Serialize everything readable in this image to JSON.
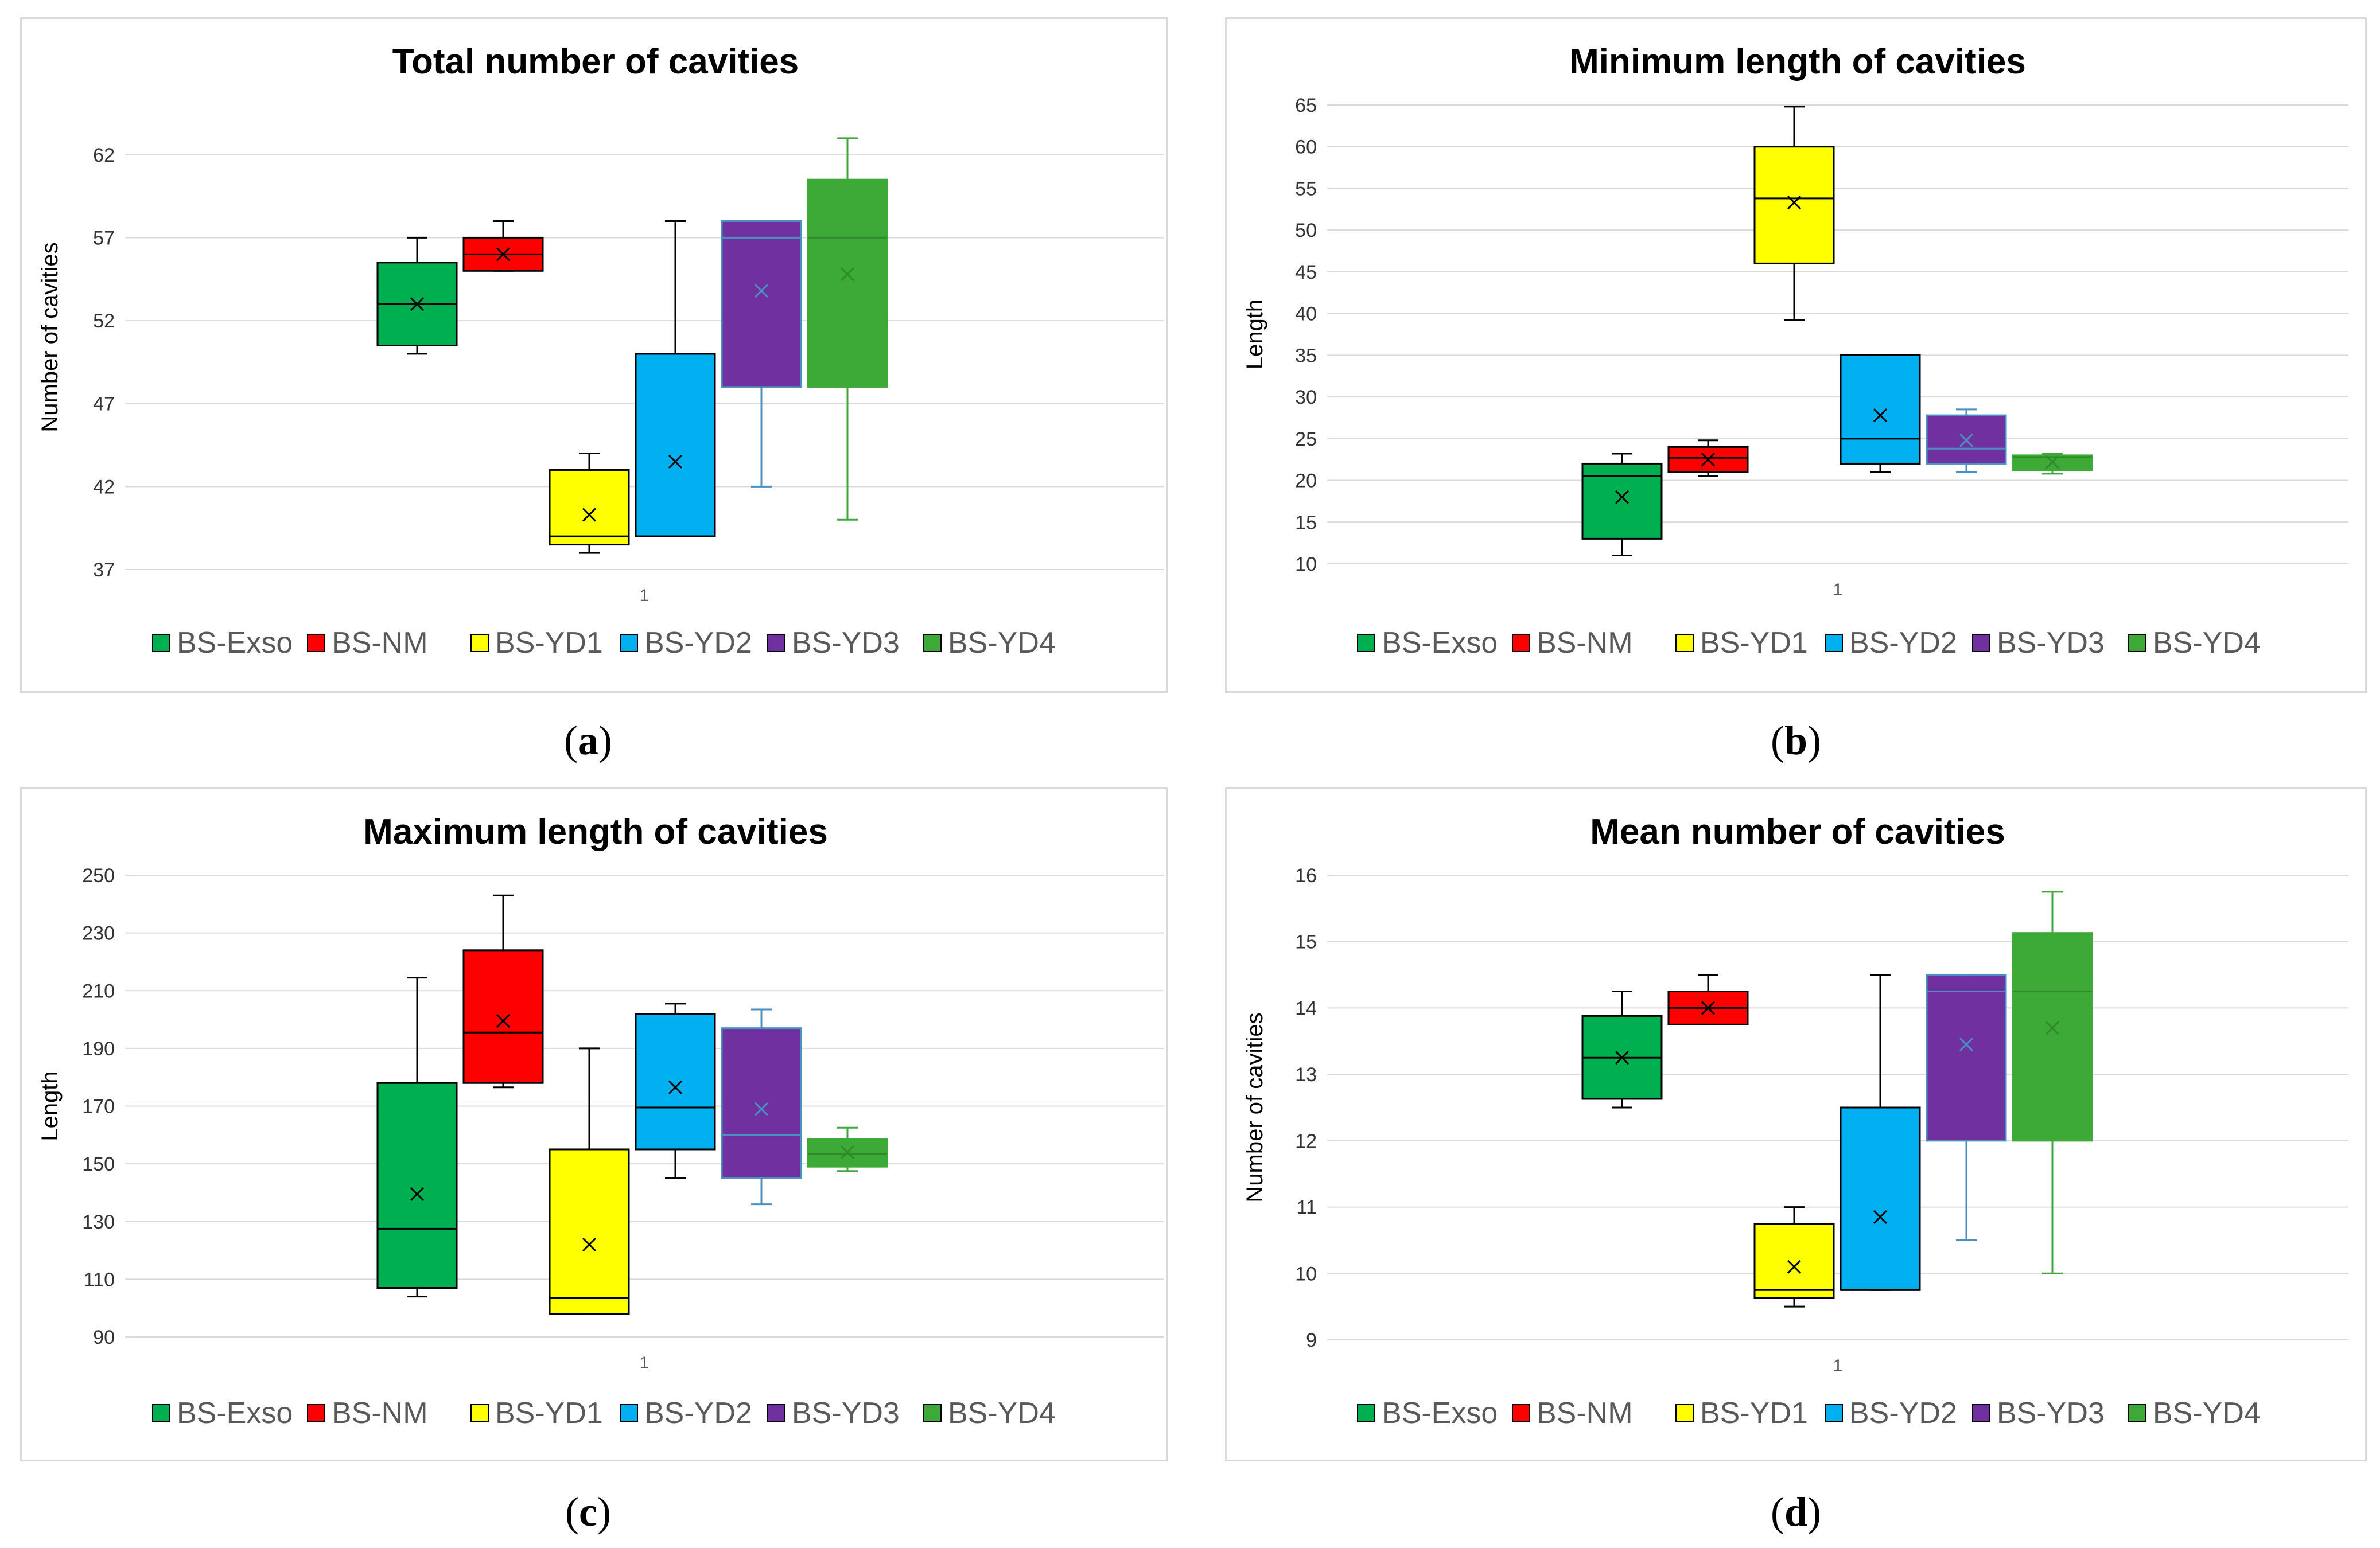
{
  "captions": [
    "a",
    "b",
    "c",
    "d"
  ],
  "chart_data": [
    {
      "type": "box",
      "title": "Total number of cavities",
      "xlabel": "",
      "ylabel": "Number of cavities",
      "category": "1",
      "ylim": [
        37,
        65
      ],
      "yticks": [
        37,
        42,
        47,
        52,
        57,
        62
      ],
      "series": [
        {
          "name": "BS-Exso",
          "color": "#00b050",
          "min": 50,
          "q1": 50.5,
          "median": 53,
          "q3": 55.5,
          "max": 57,
          "mean": 53
        },
        {
          "name": "BS-NM",
          "color": "#ff0000",
          "min": 55,
          "q1": 55,
          "median": 56,
          "q3": 57,
          "max": 58,
          "mean": 56
        },
        {
          "name": "BS-YD1",
          "color": "#ffff00",
          "min": 38,
          "q1": 38.5,
          "median": 39,
          "q3": 43,
          "max": 44,
          "mean": 40.3
        },
        {
          "name": "BS-YD2",
          "color": "#00b0f0",
          "min": 39,
          "q1": 39,
          "median": 39,
          "q3": 50,
          "max": 58,
          "mean": 43.5
        },
        {
          "name": "BS-YD3",
          "color": "#7030a0",
          "min": 42,
          "q1": 48,
          "median": 57,
          "q3": 58,
          "max": 58,
          "mean": 53.8
        },
        {
          "name": "BS-YD4",
          "color": "#3daa37",
          "min": 40,
          "q1": 48,
          "median": 57,
          "q3": 60.5,
          "max": 63,
          "mean": 54.8
        }
      ]
    },
    {
      "type": "box",
      "title": "Minimum length of cavities",
      "xlabel": "",
      "ylabel": "Length",
      "category": "1",
      "ylim": [
        10,
        65
      ],
      "yticks": [
        10,
        15,
        20,
        25,
        30,
        35,
        40,
        45,
        50,
        55,
        60,
        65
      ],
      "series": [
        {
          "name": "BS-Exso",
          "color": "#00b050",
          "min": 11,
          "q1": 13,
          "median": 20.5,
          "q3": 22,
          "max": 23.2,
          "mean": 18
        },
        {
          "name": "BS-NM",
          "color": "#ff0000",
          "min": 20.5,
          "q1": 21,
          "median": 22.7,
          "q3": 24,
          "max": 24.8,
          "mean": 22.5
        },
        {
          "name": "BS-YD1",
          "color": "#ffff00",
          "min": 39.2,
          "q1": 46,
          "median": 53.8,
          "q3": 60,
          "max": 64.8,
          "mean": 53.3
        },
        {
          "name": "BS-YD2",
          "color": "#00b0f0",
          "min": 21,
          "q1": 22,
          "median": 25,
          "q3": 35,
          "max": 35,
          "mean": 27.8
        },
        {
          "name": "BS-YD3",
          "color": "#7030a0",
          "min": 21,
          "q1": 22,
          "median": 23.8,
          "q3": 27.8,
          "max": 28.5,
          "mean": 24.8
        },
        {
          "name": "BS-YD4",
          "color": "#3daa37",
          "min": 20.8,
          "q1": 21.2,
          "median": 22.8,
          "q3": 23,
          "max": 23.2,
          "mean": 22.2
        }
      ]
    },
    {
      "type": "box",
      "title": "Maximum length of cavities",
      "xlabel": "",
      "ylabel": "Length",
      "category": "1",
      "ylim": [
        90,
        250
      ],
      "yticks": [
        90,
        110,
        130,
        150,
        170,
        190,
        210,
        230,
        250
      ],
      "series": [
        {
          "name": "BS-Exso",
          "color": "#00b050",
          "min": 104,
          "q1": 107,
          "median": 127.5,
          "q3": 178,
          "max": 214.5,
          "mean": 139.5
        },
        {
          "name": "BS-NM",
          "color": "#ff0000",
          "min": 176.5,
          "q1": 178,
          "median": 195.5,
          "q3": 224,
          "max": 243,
          "mean": 199.5
        },
        {
          "name": "BS-YD1",
          "color": "#ffff00",
          "min": 98,
          "q1": 98,
          "median": 103.5,
          "q3": 155,
          "max": 190,
          "mean": 122
        },
        {
          "name": "BS-YD2",
          "color": "#00b0f0",
          "min": 145,
          "q1": 155,
          "median": 169.5,
          "q3": 202,
          "max": 205.5,
          "mean": 176.5
        },
        {
          "name": "BS-YD3",
          "color": "#7030a0",
          "min": 136,
          "q1": 145,
          "median": 160,
          "q3": 197,
          "max": 203.5,
          "mean": 169
        },
        {
          "name": "BS-YD4",
          "color": "#3daa37",
          "min": 147.5,
          "q1": 149,
          "median": 153.5,
          "q3": 158.5,
          "max": 162.5,
          "mean": 154
        }
      ]
    },
    {
      "type": "box",
      "title": "Mean number of cavities",
      "xlabel": "",
      "ylabel": "Number of cavities",
      "category": "1",
      "ylim": [
        9,
        16
      ],
      "yticks": [
        9,
        10,
        11,
        12,
        13,
        14,
        15,
        16
      ],
      "series": [
        {
          "name": "BS-Exso",
          "color": "#00b050",
          "min": 12.5,
          "q1": 12.63,
          "median": 13.25,
          "q3": 13.88,
          "max": 14.25,
          "mean": 13.25
        },
        {
          "name": "BS-NM",
          "color": "#ff0000",
          "min": 13.75,
          "q1": 13.75,
          "median": 14,
          "q3": 14.25,
          "max": 14.5,
          "mean": 14
        },
        {
          "name": "BS-YD1",
          "color": "#ffff00",
          "min": 9.5,
          "q1": 9.63,
          "median": 9.75,
          "q3": 10.75,
          "max": 11,
          "mean": 10.1
        },
        {
          "name": "BS-YD2",
          "color": "#00b0f0",
          "min": 9.75,
          "q1": 9.75,
          "median": 9.75,
          "q3": 12.5,
          "max": 14.5,
          "mean": 10.85
        },
        {
          "name": "BS-YD3",
          "color": "#7030a0",
          "min": 10.5,
          "q1": 12,
          "median": 14.25,
          "q3": 14.5,
          "max": 14.5,
          "mean": 13.45
        },
        {
          "name": "BS-YD4",
          "color": "#3daa37",
          "min": 10,
          "q1": 12,
          "median": 14.25,
          "q3": 15.13,
          "max": 15.75,
          "mean": 13.7
        }
      ]
    }
  ]
}
